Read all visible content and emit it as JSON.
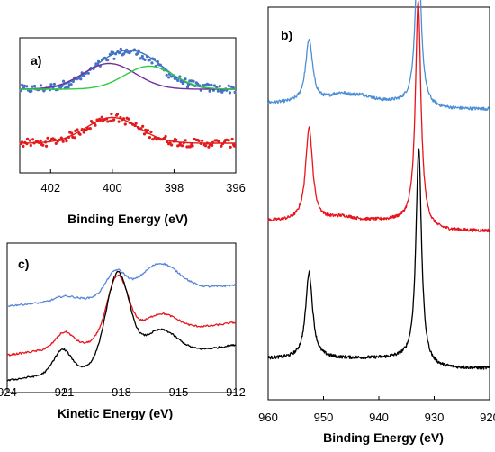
{
  "chart_data": [
    {
      "id": "a",
      "type": "scatter",
      "panel_label": "a)",
      "title": "",
      "xlabel": "Binding Energy (eV)",
      "ylabel": "",
      "xlim": [
        403,
        396
      ],
      "x_reversed": true,
      "ylim": [
        0,
        1
      ],
      "x_ticks": [
        "402",
        "400",
        "398",
        "396"
      ],
      "grid": false,
      "legend": "none",
      "series": [
        {
          "kind": "scatter",
          "color": "#4472c4",
          "offset": 0.62,
          "baseline": 0.0,
          "noise": 0.03,
          "peaks": [
            {
              "center": 399.5,
              "height": 0.28,
              "width": 1.0
            }
          ]
        },
        {
          "kind": "line",
          "color": "#4472c4",
          "offset": 0.62,
          "peaks": [
            {
              "center": 400.0,
              "height": 0.19,
              "width": 0.85
            },
            {
              "center": 398.9,
              "height": 0.17,
              "width": 0.8
            }
          ]
        },
        {
          "kind": "line",
          "color": "#7030a0",
          "offset": 0.62,
          "peaks": [
            {
              "center": 400.1,
              "height": 0.19,
              "width": 0.85
            }
          ]
        },
        {
          "kind": "line",
          "color": "#2ecc40",
          "offset": 0.62,
          "peaks": [
            {
              "center": 398.8,
              "height": 0.17,
              "width": 0.8
            }
          ]
        },
        {
          "kind": "scatter",
          "color": "#e31a1c",
          "offset": 0.22,
          "baseline": 0.0,
          "noise": 0.03,
          "peaks": [
            {
              "center": 400.0,
              "height": 0.19,
              "width": 0.85
            }
          ]
        },
        {
          "kind": "line",
          "color": "#e31a1c",
          "offset": 0.22,
          "peaks": [
            {
              "center": 400.0,
              "height": 0.19,
              "width": 0.85
            }
          ]
        }
      ]
    },
    {
      "id": "b",
      "type": "line",
      "panel_label": "b)",
      "title": "",
      "xlabel": "Binding Energy (eV)",
      "ylabel": "",
      "xlim": [
        960,
        920
      ],
      "x_reversed": true,
      "ylim": [
        0,
        1
      ],
      "x_ticks": [
        "960",
        "950",
        "940",
        "930",
        "920"
      ],
      "grid": false,
      "legend": "none",
      "series": [
        {
          "color": "#4d8fd6",
          "offset": 0.74,
          "noise": 0.004,
          "peaks": [
            {
              "center": 952.6,
              "height": 0.16,
              "width": 0.75
            },
            {
              "center": 932.9,
              "height": 0.43,
              "width": 0.6
            },
            {
              "center": 947.0,
              "height": 0.02,
              "width": 2.5
            },
            {
              "center": 943.0,
              "height": 0.015,
              "width": 2.5
            }
          ],
          "step": 0.015
        },
        {
          "color": "#e8141c",
          "offset": 0.43,
          "noise": 0.004,
          "peaks": [
            {
              "center": 952.6,
              "height": 0.24,
              "width": 0.75
            },
            {
              "center": 932.9,
              "height": 0.57,
              "width": 0.6
            },
            {
              "center": 946.5,
              "height": 0.01,
              "width": 2.5
            }
          ],
          "step": 0.025
        },
        {
          "color": "#000000",
          "offset": 0.08,
          "noise": 0.004,
          "peaks": [
            {
              "center": 952.6,
              "height": 0.22,
              "width": 0.75
            },
            {
              "center": 932.8,
              "height": 0.55,
              "width": 0.6
            }
          ],
          "step": 0.025
        }
      ]
    },
    {
      "id": "c",
      "type": "line",
      "panel_label": "c)",
      "title": "",
      "xlabel": "Kinetic Energy (eV)",
      "ylabel": "",
      "xlim": [
        924,
        912
      ],
      "x_reversed": true,
      "ylim": [
        0,
        1
      ],
      "x_ticks": [
        "924",
        "921",
        "918",
        "915",
        "912"
      ],
      "grid": false,
      "legend": "none",
      "series": [
        {
          "color": "#5a86d6",
          "offset": 0.58,
          "end": 0.72,
          "noise": 0.006,
          "peaks": [
            {
              "center": 918.3,
              "height": 0.16,
              "width": 0.5
            },
            {
              "center": 916.0,
              "height": 0.19,
              "width": 1.0
            },
            {
              "center": 921.0,
              "height": 0.03,
              "width": 0.5
            }
          ]
        },
        {
          "color": "#e8141c",
          "offset": 0.25,
          "end": 0.47,
          "noise": 0.006,
          "peaks": [
            {
              "center": 918.2,
              "height": 0.42,
              "width": 0.55
            },
            {
              "center": 916.0,
              "height": 0.13,
              "width": 0.9
            },
            {
              "center": 921.0,
              "height": 0.1,
              "width": 0.45
            }
          ]
        },
        {
          "color": "#000000",
          "offset": 0.08,
          "end": 0.32,
          "noise": 0.006,
          "peaks": [
            {
              "center": 918.2,
              "height": 0.6,
              "width": 0.6
            },
            {
              "center": 916.0,
              "height": 0.18,
              "width": 0.9
            },
            {
              "center": 921.1,
              "height": 0.15,
              "width": 0.45
            }
          ]
        }
      ]
    }
  ]
}
